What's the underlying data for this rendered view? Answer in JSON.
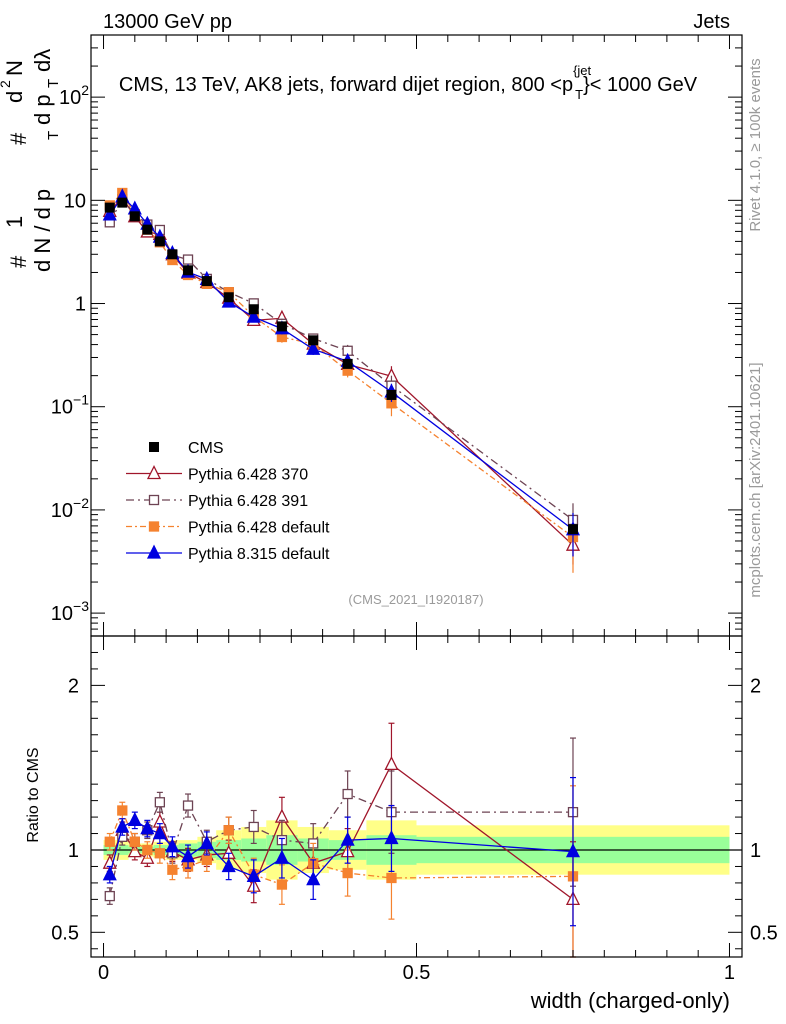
{
  "header": {
    "left": "13000 GeV pp",
    "right": "Jets"
  },
  "side_labels": {
    "top": "Rivet 4.1.0, ≥ 100k events",
    "bottom": "mcplots.cern.ch [arXiv:2401.10621]"
  },
  "colors": {
    "cms": "#000000",
    "p370": "#a0162b",
    "p391": "#6d4353",
    "pdef": "#f5822f",
    "p8": "#0000e0",
    "band_outer": "#ffff88",
    "band_inner": "#99ff99"
  },
  "chart_data": {
    "type": "scatter",
    "title": "CMS, 13 TeV, AK8 jets, forward dijet region, 800 <p",
    "title_sub": "T",
    "title_sup": "{jet",
    "title_tail": "}< 1000 GeV",
    "watermark": "(CMS_2021_I1920187)",
    "xlabel": "width (charged-only)",
    "ylabel_parts": [
      "#",
      "1",
      "d N / d p",
      "T",
      "#",
      "d p",
      "T",
      "dλ",
      "d",
      "2",
      "N"
    ],
    "ratio_ylabel": "Ratio to CMS",
    "xlim": [
      -0.02,
      1.02
    ],
    "main_ylim": [
      0.0006,
      400
    ],
    "ratio_ylim": [
      0.35,
      2.3
    ],
    "main_yticks": [
      {
        "v": 0.001,
        "base": "10",
        "exp": "−3"
      },
      {
        "v": 0.01,
        "base": "10",
        "exp": "−2"
      },
      {
        "v": 0.1,
        "base": "10",
        "exp": "−1"
      },
      {
        "v": 1,
        "label": "1"
      },
      {
        "v": 10,
        "label": "10"
      },
      {
        "v": 100,
        "base": "10",
        "exp": "2"
      }
    ],
    "xticks": [
      {
        "v": 0,
        "label": "0"
      },
      {
        "v": 0.5,
        "label": "0.5"
      },
      {
        "v": 1,
        "label": "1"
      }
    ],
    "ratio_yticks": [
      {
        "v": 0.5,
        "label": "0.5"
      },
      {
        "v": 1,
        "label": "1"
      },
      {
        "v": 2,
        "label": "2"
      }
    ],
    "x": [
      0.01,
      0.03,
      0.05,
      0.07,
      0.09,
      0.11,
      0.135,
      0.165,
      0.2,
      0.24,
      0.285,
      0.335,
      0.39,
      0.46,
      0.75
    ],
    "bin_edges": [
      0,
      0.02,
      0.04,
      0.06,
      0.08,
      0.1,
      0.12,
      0.15,
      0.18,
      0.22,
      0.26,
      0.31,
      0.36,
      0.42,
      0.5,
      1.0
    ],
    "cms": {
      "name": "CMS",
      "values": [
        8.5,
        9.5,
        7.0,
        5.2,
        4.0,
        3.0,
        2.1,
        1.65,
        1.15,
        0.88,
        0.6,
        0.44,
        0.26,
        0.13,
        0.0065
      ],
      "band_outer": [
        0.06,
        0.06,
        0.04,
        0.04,
        0.05,
        0.06,
        0.06,
        0.08,
        0.12,
        0.14,
        0.18,
        0.14,
        0.12,
        0.18,
        0.15
      ],
      "band_inner": [
        0.03,
        0.03,
        0.02,
        0.02,
        0.03,
        0.03,
        0.04,
        0.05,
        0.06,
        0.07,
        0.09,
        0.07,
        0.06,
        0.09,
        0.08
      ]
    },
    "series": [
      {
        "name": "Pythia 6.428 370",
        "key": "p370",
        "marker": "triangle-open",
        "dash": "",
        "ratio": [
          0.92,
          1.12,
          0.99,
          0.95,
          1.17,
          0.99,
          0.94,
          0.97,
          0.98,
          0.78,
          1.2,
          0.92,
          0.99,
          1.52,
          0.7
        ],
        "ratio_err": [
          0.05,
          0.05,
          0.05,
          0.05,
          0.06,
          0.06,
          0.07,
          0.07,
          0.08,
          0.1,
          0.12,
          0.12,
          0.14,
          0.25,
          0.35
        ]
      },
      {
        "name": "Pythia 6.428 391",
        "key": "p391",
        "marker": "square-open",
        "dash": "8,4,2,4",
        "ratio": [
          0.72,
          1.08,
          1.05,
          1.12,
          1.29,
          0.98,
          1.27,
          1.05,
          1.12,
          1.14,
          1.06,
          1.04,
          1.34,
          1.23,
          1.23
        ],
        "ratio_err": [
          0.05,
          0.05,
          0.05,
          0.05,
          0.06,
          0.06,
          0.07,
          0.07,
          0.08,
          0.1,
          0.12,
          0.12,
          0.14,
          0.25,
          0.45
        ]
      },
      {
        "name": "Pythia 6.428 default",
        "key": "pdef",
        "marker": "square-filled",
        "dash": "6,3,2,3",
        "ratio": [
          1.05,
          1.24,
          1.05,
          1.0,
          0.98,
          0.88,
          0.9,
          0.94,
          1.12,
          0.85,
          0.79,
          0.92,
          0.86,
          0.83,
          0.84
        ],
        "ratio_err": [
          0.05,
          0.05,
          0.05,
          0.05,
          0.06,
          0.06,
          0.07,
          0.07,
          0.08,
          0.1,
          0.12,
          0.12,
          0.14,
          0.25,
          0.55
        ]
      },
      {
        "name": "Pythia 8.315 default",
        "key": "p8",
        "marker": "triangle-filled",
        "dash": "",
        "ratio": [
          0.85,
          1.14,
          1.18,
          1.13,
          1.1,
          1.02,
          0.96,
          1.04,
          0.9,
          0.84,
          0.95,
          0.82,
          1.06,
          1.07,
          0.99
        ],
        "ratio_err": [
          0.05,
          0.05,
          0.05,
          0.05,
          0.06,
          0.06,
          0.07,
          0.07,
          0.08,
          0.1,
          0.12,
          0.12,
          0.14,
          0.2,
          0.45
        ]
      }
    ],
    "legend_position": "lower-left",
    "grid": false
  }
}
